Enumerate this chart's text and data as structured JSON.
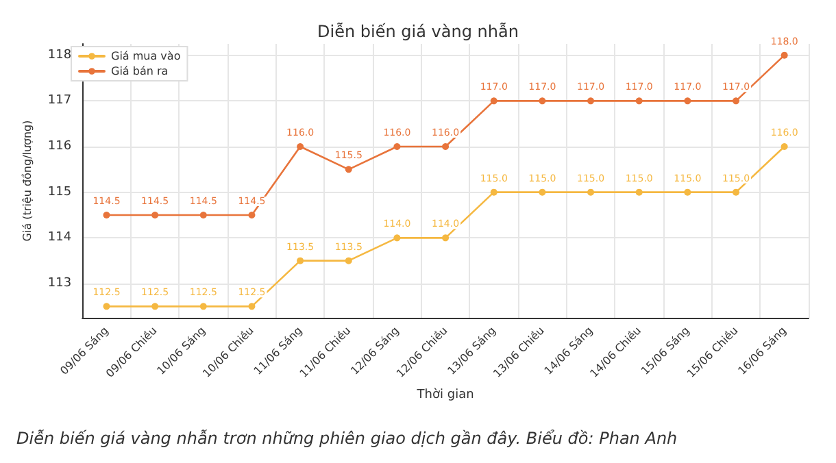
{
  "chart_data": {
    "type": "line",
    "title": "Diễn biến giá vàng nhẫn",
    "xlabel": "Thời gian",
    "ylabel": "Giá (triệu đồng/lượng)",
    "categories": [
      "09/06 Sáng",
      "09/06 Chiều",
      "10/06 Sáng",
      "10/06 Chiều",
      "11/06 Sáng",
      "11/06 Chiều",
      "12/06 Sáng",
      "12/06 Chiều",
      "13/06 Sáng",
      "13/06 Chiều",
      "14/06 Sáng",
      "14/06 Chiều",
      "15/06 Sáng",
      "15/06 Chiều",
      "16/06 Sáng"
    ],
    "series": [
      {
        "name": "Giá mua vào",
        "color": "#f5b841",
        "values": [
          112.5,
          112.5,
          112.5,
          112.5,
          113.5,
          113.5,
          114,
          114,
          115,
          115,
          115,
          115,
          115,
          115,
          116
        ],
        "value_labels": [
          "112.5",
          "112.5",
          "112.5",
          "112.5",
          "113.5",
          "113.5",
          "114.0",
          "114.0",
          "115.0",
          "115.0",
          "115.0",
          "115.0",
          "115.0",
          "115.0",
          "116.0"
        ]
      },
      {
        "name": "Giá bán ra",
        "color": "#e8743b",
        "values": [
          114.5,
          114.5,
          114.5,
          114.5,
          116,
          115.5,
          116,
          116,
          117,
          117,
          117,
          117,
          117,
          117,
          118
        ],
        "value_labels": [
          "114.5",
          "114.5",
          "114.5",
          "114.5",
          "116.0",
          "115.5",
          "116.0",
          "116.0",
          "117.0",
          "117.0",
          "117.0",
          "117.0",
          "117.0",
          "117.0",
          "118.0"
        ]
      }
    ],
    "ylim": [
      112.25,
      118.25
    ],
    "yticks": [
      113,
      114,
      115,
      116,
      117,
      118
    ],
    "grid": true,
    "legend": "top left",
    "marker": "circle",
    "line_style": "solid",
    "annotations": [
      "Diễn biến giá vàng nhẫn trơn những phiên giao dịch gần đây. Biểu đồ: Phan Anh"
    ]
  }
}
